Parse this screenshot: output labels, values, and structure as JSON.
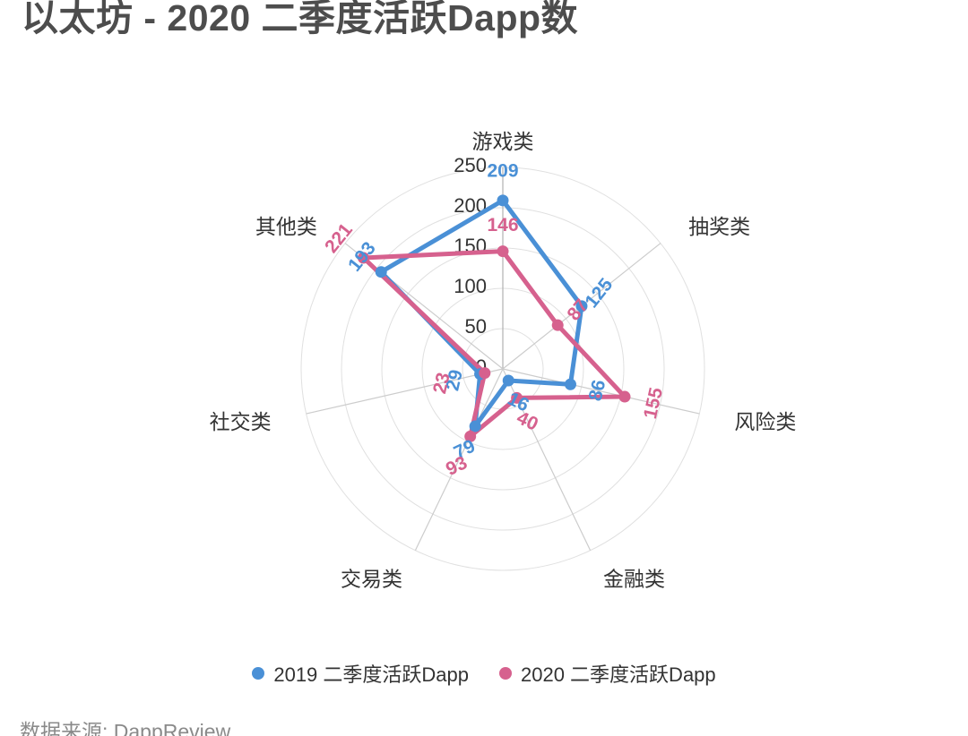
{
  "source": "数据来源: DappReview",
  "chart_data": {
    "type": "radar",
    "title": "以太坊 - 2020 二季度活跃Dapp数",
    "categories": [
      "游戏类",
      "抽奖类",
      "风险类",
      "金融类",
      "交易类",
      "社交类",
      "其他类"
    ],
    "max": 250,
    "radial_ticks": [
      0,
      50,
      100,
      150,
      200,
      250
    ],
    "grid_shape": "circle",
    "legend_position": "bottom",
    "series": [
      {
        "name": "2019 二季度活跃Dapp",
        "color": "#4a90d6",
        "values": [
          209,
          125,
          86,
          16,
          79,
          29,
          193
        ]
      },
      {
        "name": "2020 二季度活跃Dapp",
        "color": "#d6618e",
        "values": [
          146,
          87,
          155,
          40,
          93,
          23,
          221
        ]
      }
    ]
  }
}
